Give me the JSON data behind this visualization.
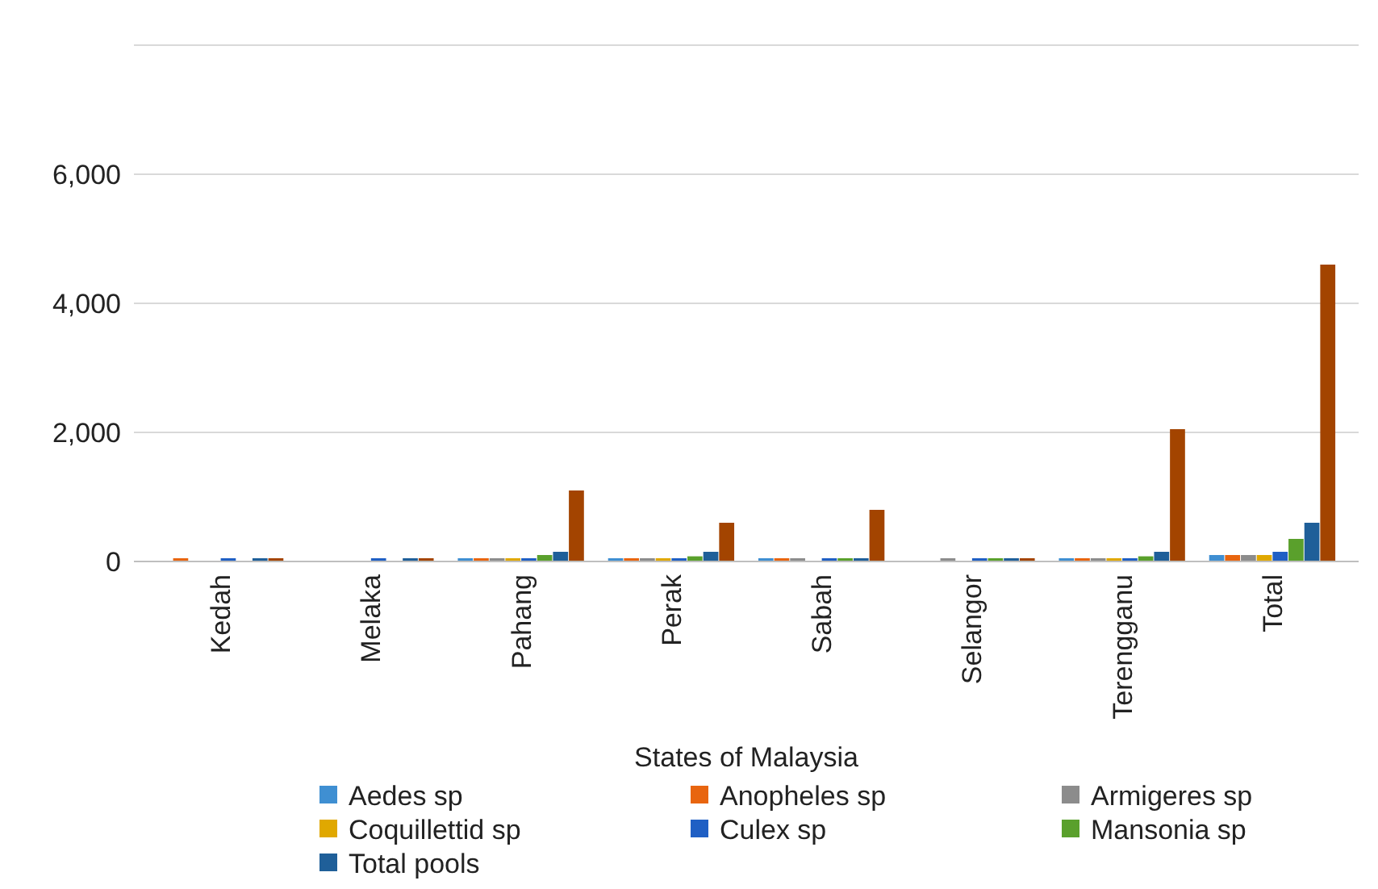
{
  "chart_data": {
    "type": "bar",
    "xlabel": "States of Malaysia",
    "categories": [
      "Kedah",
      "Melaka",
      "Pahang",
      "Perak",
      "Sabah",
      "Selangor",
      "Terengganu",
      "Total"
    ],
    "series": [
      {
        "name": "Aedes sp",
        "color": "#3f8fd2",
        "values": [
          0,
          0,
          50,
          50,
          50,
          0,
          50,
          100
        ]
      },
      {
        "name": "Anopheles sp",
        "color": "#e8650f",
        "values": [
          50,
          0,
          50,
          50,
          50,
          0,
          50,
          100
        ]
      },
      {
        "name": "Armigeres sp",
        "color": "#8c8c8c",
        "values": [
          0,
          0,
          50,
          50,
          50,
          50,
          50,
          100
        ]
      },
      {
        "name": "Coquillettid sp",
        "color": "#e0a800",
        "values": [
          0,
          0,
          50,
          50,
          0,
          0,
          50,
          100
        ]
      },
      {
        "name": "Culex sp",
        "color": "#1f5fc4",
        "values": [
          50,
          50,
          50,
          50,
          50,
          50,
          50,
          150
        ]
      },
      {
        "name": "Mansonia sp",
        "color": "#5aa02c",
        "values": [
          0,
          0,
          100,
          80,
          50,
          50,
          80,
          350
        ]
      },
      {
        "name": "Total pools",
        "color": "#1f5f99",
        "values": [
          50,
          50,
          150,
          150,
          50,
          50,
          150,
          600
        ]
      },
      {
        "color": "#a34400",
        "values": [
          50,
          50,
          1100,
          600,
          800,
          50,
          2050,
          4600
        ]
      }
    ],
    "ylim": [
      0,
      8000
    ],
    "yticks": [
      0,
      {
        "value": 2000,
        "label": "2,000"
      },
      {
        "value": 4000,
        "label": "4,000"
      },
      {
        "value": 6000,
        "label": "6,000"
      },
      {
        "value": 8000,
        "label": null
      }
    ],
    "grid": "y",
    "legend": "bottom"
  }
}
